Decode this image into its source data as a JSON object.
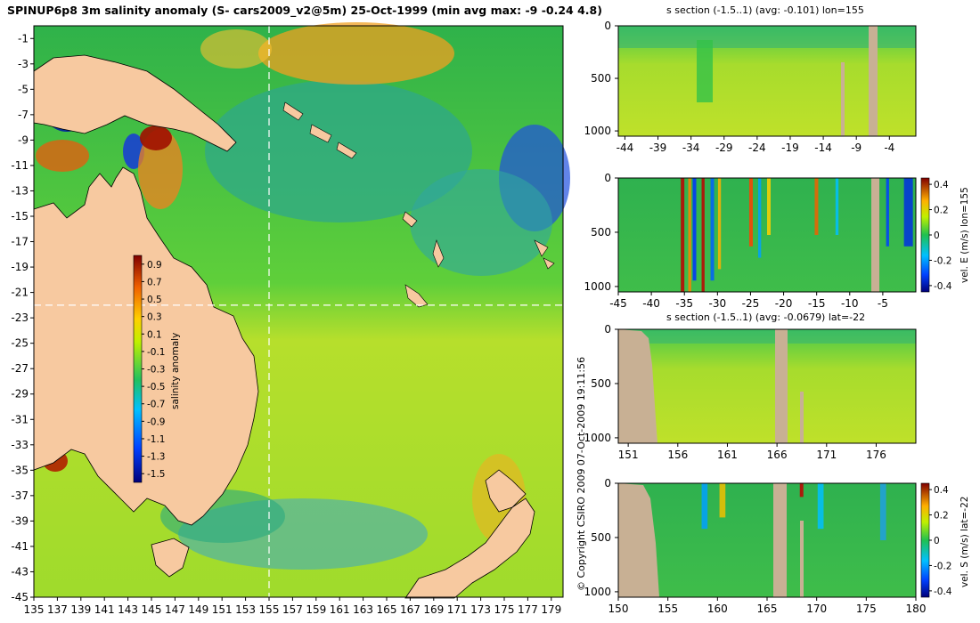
{
  "header": {
    "title": "SPINUP6p8 3m salinity anomaly (S- cars2009_v2@5m) 25-Oct-1999 (min avg max: -9 -0.24 4.8)",
    "copyright": "© Copyright CSIRO 2009   07-Oct-2009 19:11:56"
  },
  "colors": {
    "land": "#f7c9a0",
    "section_land": "#c8b094",
    "ocean_green": "#36c24b",
    "ocean_yellow": "#b7e02a",
    "crosshair": "#ffffff"
  },
  "chart_data": [
    {
      "id": "map",
      "type": "heatmap",
      "title": "",
      "xlabel": "",
      "ylabel": "",
      "x_ticks": [
        135,
        137,
        139,
        141,
        143,
        145,
        147,
        149,
        151,
        153,
        155,
        157,
        159,
        161,
        163,
        165,
        167,
        169,
        171,
        173,
        175,
        177,
        179
      ],
      "y_ticks": [
        -1,
        -3,
        -5,
        -7,
        -9,
        -11,
        -13,
        -15,
        -17,
        -19,
        -21,
        -23,
        -25,
        -27,
        -29,
        -31,
        -33,
        -35,
        -37,
        -39,
        -41,
        -43,
        -45
      ],
      "xlim": [
        135,
        180
      ],
      "ylim": [
        -45,
        0
      ],
      "crosshair": {
        "lon": 155,
        "lat": -22
      },
      "colorbar": {
        "label": "salinity anomaly",
        "ticks": [
          0.9,
          0.7,
          0.5,
          0.3,
          0.1,
          -0.1,
          -0.3,
          -0.5,
          -0.7,
          -0.9,
          -1.1,
          -1.3,
          -1.5
        ],
        "range": [
          -1.6,
          1.0
        ]
      }
    },
    {
      "id": "s-section-lon",
      "type": "heatmap",
      "title": "s section (-1.5..1) (avg: -0.101) lon=155",
      "side_label": "",
      "x_ticks": [
        -44,
        -39,
        -34,
        -29,
        -24,
        -19,
        -14,
        -9,
        -4
      ],
      "y_ticks": [
        0,
        500,
        1000
      ],
      "xlim": [
        -45,
        0
      ],
      "ylim": [
        0,
        1050
      ]
    },
    {
      "id": "vel-e-lon",
      "type": "heatmap",
      "title": "",
      "side_label": "vel. E (m/s) lon=155",
      "x_ticks": [
        -45,
        -40,
        -35,
        -30,
        -25,
        -20,
        -15,
        -10,
        -5
      ],
      "y_ticks": [
        0,
        500,
        1000
      ],
      "xlim": [
        -45,
        0
      ],
      "ylim": [
        0,
        1050
      ],
      "colorbar": {
        "ticks": [
          "0.4",
          "0.2",
          "0",
          "-0.2",
          "-0.4"
        ],
        "range": [
          -0.45,
          0.45
        ]
      }
    },
    {
      "id": "s-section-lat",
      "type": "heatmap",
      "title": "s section (-1.5..1) (avg: -0.0679) lat=-22",
      "side_label": "",
      "x_ticks": [
        151,
        156,
        161,
        166,
        171,
        176
      ],
      "y_ticks": [
        0,
        500,
        1000
      ],
      "xlim": [
        150,
        180
      ],
      "ylim": [
        0,
        1050
      ]
    },
    {
      "id": "vel-s-lat",
      "type": "heatmap",
      "title": "",
      "side_label": "vel. S (m/s) lat=-22",
      "x_ticks": [
        150,
        155,
        160,
        165,
        170,
        175,
        180
      ],
      "y_ticks": [
        0,
        500,
        1000
      ],
      "xlim": [
        150,
        180
      ],
      "ylim": [
        0,
        1050
      ],
      "colorbar": {
        "ticks": [
          "0.4",
          "0.2",
          "0",
          "-0.2",
          "-0.4"
        ],
        "range": [
          -0.45,
          0.45
        ]
      }
    }
  ]
}
